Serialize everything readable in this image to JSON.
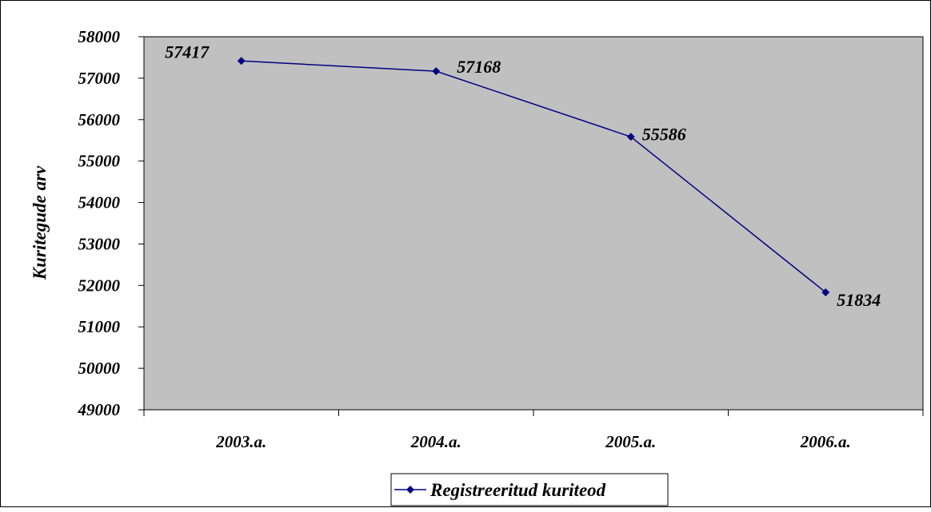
{
  "chart_data": {
    "type": "line",
    "title": "",
    "xlabel": "",
    "ylabel": "Kuritegude arv",
    "categories": [
      "2003.a.",
      "2004.a.",
      "2005.a.",
      "2006.a."
    ],
    "series": [
      {
        "name": "Registreeritud kuriteod",
        "values": [
          57417,
          57168,
          55586,
          51834
        ],
        "color": "#000080",
        "marker": "diamond"
      }
    ],
    "ylim": [
      49000,
      58000
    ],
    "yticks": [
      49000,
      50000,
      51000,
      52000,
      53000,
      54000,
      55000,
      56000,
      57000,
      58000
    ],
    "grid": false,
    "plot_background": "#c0c0c0",
    "legend": {
      "position": "bottom-center"
    },
    "data_labels": true
  }
}
